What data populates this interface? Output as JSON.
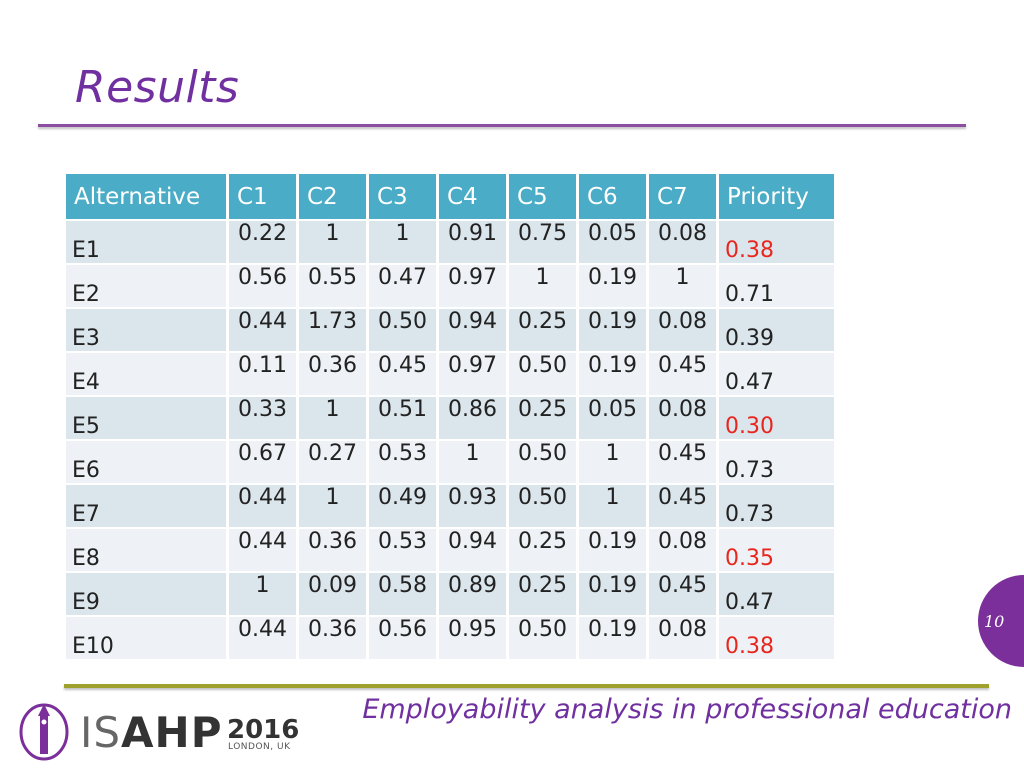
{
  "slide": {
    "title": "Results",
    "footer": "Employability analysis in professional education",
    "page_number": "10",
    "logo": {
      "brand_prefix": "IS",
      "brand_suffix": "AHP",
      "year": "2016",
      "location": "LONDON, UK"
    }
  },
  "table": {
    "headers": [
      "Alternative",
      "C1",
      "C2",
      "C3",
      "C4",
      "C5",
      "C6",
      "C7",
      "Priority"
    ],
    "rows": [
      {
        "alt": "E1",
        "values": [
          "0.22",
          "1",
          "1",
          "0.91",
          "0.75",
          "0.05",
          "0.08"
        ],
        "priority": "0.38",
        "highlight": true
      },
      {
        "alt": "E2",
        "values": [
          "0.56",
          "0.55",
          "0.47",
          "0.97",
          "1",
          "0.19",
          "1"
        ],
        "priority": "0.71",
        "highlight": false
      },
      {
        "alt": "E3",
        "values": [
          "0.44",
          "1.73",
          "0.50",
          "0.94",
          "0.25",
          "0.19",
          "0.08"
        ],
        "priority": "0.39",
        "highlight": false
      },
      {
        "alt": "E4",
        "values": [
          "0.11",
          "0.36",
          "0.45",
          "0.97",
          "0.50",
          "0.19",
          "0.45"
        ],
        "priority": "0.47",
        "highlight": false
      },
      {
        "alt": "E5",
        "values": [
          "0.33",
          "1",
          "0.51",
          "0.86",
          "0.25",
          "0.05",
          "0.08"
        ],
        "priority": "0.30",
        "highlight": true
      },
      {
        "alt": "E6",
        "values": [
          "0.67",
          "0.27",
          "0.53",
          "1",
          "0.50",
          "1",
          "0.45"
        ],
        "priority": "0.73",
        "highlight": false
      },
      {
        "alt": "E7",
        "values": [
          "0.44",
          "1",
          "0.49",
          "0.93",
          "0.50",
          "1",
          "0.45"
        ],
        "priority": "0.73",
        "highlight": false
      },
      {
        "alt": "E8",
        "values": [
          "0.44",
          "0.36",
          "0.53",
          "0.94",
          "0.25",
          "0.19",
          "0.08"
        ],
        "priority": "0.35",
        "highlight": true
      },
      {
        "alt": "E9",
        "values": [
          "1",
          "0.09",
          "0.58",
          "0.89",
          "0.25",
          "0.19",
          "0.45"
        ],
        "priority": "0.47",
        "highlight": false
      },
      {
        "alt": "E10",
        "values": [
          "0.44",
          "0.36",
          "0.56",
          "0.95",
          "0.50",
          "0.19",
          "0.08"
        ],
        "priority": "0.38",
        "highlight": true
      }
    ]
  },
  "colors": {
    "title": "#7030a0",
    "header_bg": "#4aacc6",
    "highlight_text": "#e8261e",
    "accent_rule": "#9ea12c",
    "page_circle": "#7b2f9a"
  }
}
